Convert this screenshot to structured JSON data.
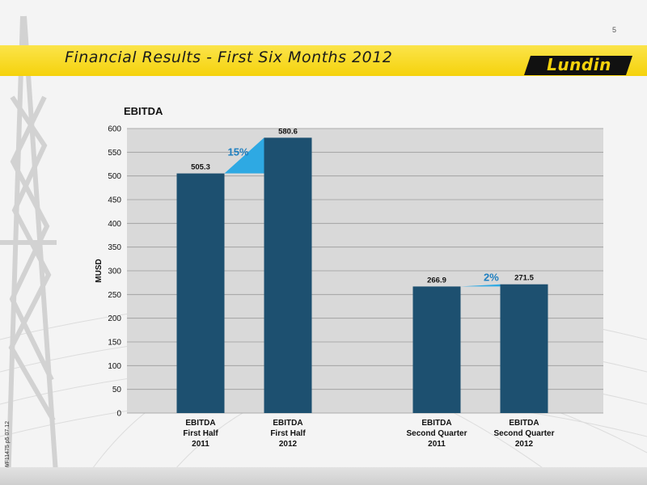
{
  "slide": {
    "page_number": "5",
    "title": "Financial Results - First Six Months 2012",
    "logo_text": "Lundin",
    "side_code": "WF11475 p5 07.12"
  },
  "colors": {
    "title_band": "#f5d20c",
    "bar": "#1d5070",
    "change_arrow": "#2ea9e3",
    "plot_bg": "#d9d9d9"
  },
  "chart_data": {
    "type": "bar",
    "title": "EBITDA",
    "ylabel": "MUSD",
    "xlabel": "",
    "ylim": [
      0,
      600
    ],
    "yticks": [
      0,
      50,
      100,
      150,
      200,
      250,
      300,
      350,
      400,
      450,
      500,
      550,
      600
    ],
    "grid": true,
    "categories": [
      [
        "EBITDA",
        "First Half",
        "2011"
      ],
      [
        "EBITDA",
        "First Half",
        "2012"
      ],
      [
        "EBITDA",
        "Second Quarter",
        "2011"
      ],
      [
        "EBITDA",
        "Second Quarter",
        "2012"
      ]
    ],
    "values": [
      505.3,
      580.6,
      266.9,
      271.5
    ],
    "value_labels": [
      "505.3",
      "580.6",
      "266.9",
      "271.5"
    ],
    "annotations": [
      {
        "text": "15%",
        "from_index": 0,
        "to_index": 1
      },
      {
        "text": "2%",
        "from_index": 2,
        "to_index": 3
      }
    ]
  }
}
